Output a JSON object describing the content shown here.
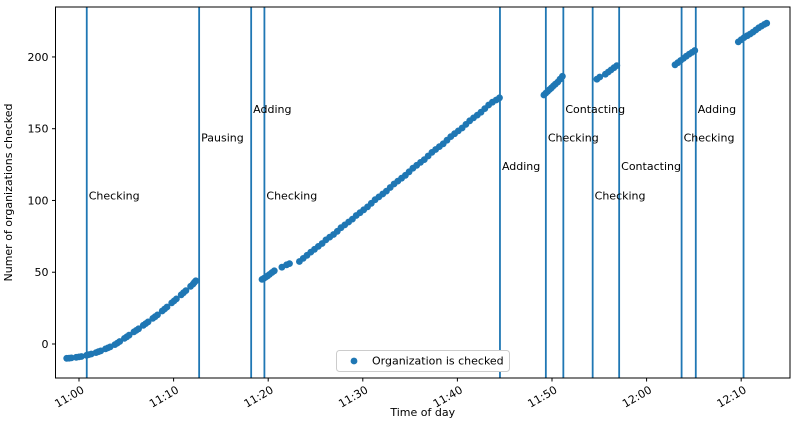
{
  "chart_data": {
    "type": "scatter",
    "title": "",
    "xlabel": "Time of day",
    "ylabel": "Numer of organizations checked",
    "x_unit_note": "x values are minutes after 11:00",
    "xlim": [
      -2.484,
      75.16
    ],
    "ylim": [
      -23.7,
      234.8
    ],
    "grid": false,
    "x_ticks": [
      {
        "t": 0,
        "label": "11:00"
      },
      {
        "t": 10,
        "label": "11:10"
      },
      {
        "t": 20,
        "label": "11:20"
      },
      {
        "t": 30,
        "label": "11:30"
      },
      {
        "t": 40,
        "label": "11:40"
      },
      {
        "t": 50,
        "label": "11:50"
      },
      {
        "t": 60,
        "label": "12:00"
      },
      {
        "t": 70,
        "label": "12:10"
      }
    ],
    "y_ticks": [
      0,
      50,
      100,
      150,
      200
    ],
    "legend": {
      "label": "Organization is checked",
      "position": "lower center"
    },
    "colors": {
      "accent": "#1f77b4",
      "spine": "#000000",
      "legend_border": "#cccccc",
      "legend_bg": "#ffffff",
      "text": "#000000"
    },
    "vlines": [
      {
        "t": 0.82,
        "label": "Checking",
        "label_v": 103
      },
      {
        "t": 12.7,
        "label": "Pausing",
        "label_v": 143.5
      },
      {
        "t": 18.2,
        "label": "Adding",
        "label_v": 163.5
      },
      {
        "t": 19.6,
        "label": "Checking",
        "label_v": 103
      },
      {
        "t": 44.5,
        "label": "Adding",
        "label_v": 123.5
      },
      {
        "t": 49.35,
        "label": "Checking",
        "label_v": 143.5
      },
      {
        "t": 51.2,
        "label": "Contacting",
        "label_v": 163.5
      },
      {
        "t": 54.3,
        "label": "Checking",
        "label_v": 103
      },
      {
        "t": 57.1,
        "label": "Contacting",
        "label_v": 123.5
      },
      {
        "t": 63.7,
        "label": "Checking",
        "label_v": 143.5
      },
      {
        "t": 65.2,
        "label": "Adding",
        "label_v": 163.5
      },
      {
        "t": 70.25,
        "label": "",
        "label_v": null
      }
    ],
    "series": [
      {
        "name": "Organization is checked",
        "marker": "dot",
        "color": "#1f77b4",
        "points": [
          [
            -1.3,
            -10
          ],
          [
            -1.05,
            -9.9
          ],
          [
            -0.8,
            -9.7
          ],
          [
            -0.3,
            -9.3
          ],
          [
            0.0,
            -9
          ],
          [
            0.25,
            -8.7
          ],
          [
            0.8,
            -7.9
          ],
          [
            1.05,
            -7.4
          ],
          [
            1.3,
            -7
          ],
          [
            1.8,
            -6
          ],
          [
            2.05,
            -5.4
          ],
          [
            2.3,
            -4.8
          ],
          [
            2.8,
            -3.4
          ],
          [
            3.05,
            -2.7
          ],
          [
            3.3,
            -2
          ],
          [
            3.8,
            -0.4
          ],
          [
            4.05,
            0.6
          ],
          [
            4.3,
            1.7
          ],
          [
            4.8,
            3.9
          ],
          [
            5.05,
            5
          ],
          [
            5.3,
            6.1
          ],
          [
            5.8,
            8.4
          ],
          [
            6.05,
            9.5
          ],
          [
            6.3,
            10.6
          ],
          [
            6.8,
            13
          ],
          [
            7.05,
            14.2
          ],
          [
            7.3,
            15.4
          ],
          [
            7.8,
            17.8
          ],
          [
            8.05,
            19
          ],
          [
            8.3,
            20.3
          ],
          [
            8.8,
            23
          ],
          [
            9.05,
            24.4
          ],
          [
            9.3,
            25.8
          ],
          [
            9.8,
            28.6
          ],
          [
            10.05,
            30
          ],
          [
            10.3,
            31.4
          ],
          [
            10.8,
            34.3
          ],
          [
            11.05,
            35.7
          ],
          [
            11.3,
            37.2
          ],
          [
            11.8,
            40.2
          ],
          [
            12.05,
            41.7
          ],
          [
            12.2,
            43
          ],
          [
            12.35,
            44
          ],
          [
            19.35,
            45
          ],
          [
            19.55,
            45.8
          ],
          [
            19.75,
            46.6
          ],
          [
            19.95,
            47.5
          ],
          [
            20.15,
            48.5
          ],
          [
            20.4,
            49.8
          ],
          [
            20.65,
            51
          ],
          [
            21.45,
            53.5
          ],
          [
            21.95,
            55.2
          ],
          [
            22.25,
            56
          ],
          [
            23.3,
            57.5
          ],
          [
            23.7,
            59.6
          ],
          [
            24.1,
            61.8
          ],
          [
            24.5,
            64
          ],
          [
            24.9,
            66
          ],
          [
            25.3,
            68
          ],
          [
            25.7,
            70
          ],
          [
            26.1,
            72.5
          ],
          [
            26.5,
            74.5
          ],
          [
            26.9,
            76.3
          ],
          [
            27.3,
            78.5
          ],
          [
            27.7,
            81
          ],
          [
            28.1,
            83
          ],
          [
            28.5,
            85
          ],
          [
            28.9,
            87
          ],
          [
            29.3,
            89.5
          ],
          [
            29.7,
            91.5
          ],
          [
            30.1,
            93.5
          ],
          [
            30.5,
            95.5
          ],
          [
            30.9,
            98
          ],
          [
            31.3,
            100.5
          ],
          [
            31.7,
            102.5
          ],
          [
            32.1,
            104.5
          ],
          [
            32.5,
            106.5
          ],
          [
            32.9,
            109
          ],
          [
            33.3,
            111.5
          ],
          [
            33.7,
            113.5
          ],
          [
            34.1,
            115.5
          ],
          [
            34.5,
            117.5
          ],
          [
            34.9,
            120
          ],
          [
            35.3,
            122.5
          ],
          [
            35.7,
            124.5
          ],
          [
            36.1,
            126.5
          ],
          [
            36.5,
            128.5
          ],
          [
            36.9,
            131
          ],
          [
            37.3,
            133.5
          ],
          [
            37.7,
            135.5
          ],
          [
            38.1,
            137.5
          ],
          [
            38.5,
            139.5
          ],
          [
            38.9,
            142
          ],
          [
            39.3,
            144.5
          ],
          [
            39.7,
            146.5
          ],
          [
            40.1,
            148.5
          ],
          [
            40.5,
            150.5
          ],
          [
            40.9,
            153
          ],
          [
            41.3,
            155.5
          ],
          [
            41.7,
            157.5
          ],
          [
            42.1,
            159.5
          ],
          [
            42.5,
            161.5
          ],
          [
            42.9,
            164
          ],
          [
            43.3,
            166.5
          ],
          [
            43.7,
            168.5
          ],
          [
            44.1,
            170
          ],
          [
            44.45,
            171.5
          ],
          [
            49.15,
            173.5
          ],
          [
            49.35,
            174.8
          ],
          [
            49.55,
            176
          ],
          [
            49.75,
            177.3
          ],
          [
            49.95,
            178.5
          ],
          [
            50.15,
            179.8
          ],
          [
            50.35,
            181
          ],
          [
            50.6,
            182.5
          ],
          [
            50.85,
            184.5
          ],
          [
            51.1,
            186.5
          ],
          [
            54.75,
            184.5
          ],
          [
            55.05,
            186
          ],
          [
            55.65,
            188
          ],
          [
            55.95,
            189.5
          ],
          [
            56.25,
            191
          ],
          [
            56.55,
            192.5
          ],
          [
            56.85,
            194
          ],
          [
            63.0,
            194.5
          ],
          [
            63.3,
            196
          ],
          [
            63.6,
            197.5
          ],
          [
            63.9,
            199
          ],
          [
            64.2,
            200.5
          ],
          [
            64.5,
            202
          ],
          [
            64.8,
            203.2
          ],
          [
            65.1,
            204.5
          ],
          [
            69.7,
            210.5
          ],
          [
            70.0,
            212
          ],
          [
            70.3,
            213.5
          ],
          [
            70.65,
            214.8
          ],
          [
            70.95,
            216
          ],
          [
            71.25,
            217.3
          ],
          [
            71.55,
            218.8
          ],
          [
            71.85,
            220.3
          ],
          [
            72.15,
            221.5
          ],
          [
            72.45,
            222.7
          ],
          [
            72.7,
            223.5
          ]
        ]
      }
    ]
  }
}
